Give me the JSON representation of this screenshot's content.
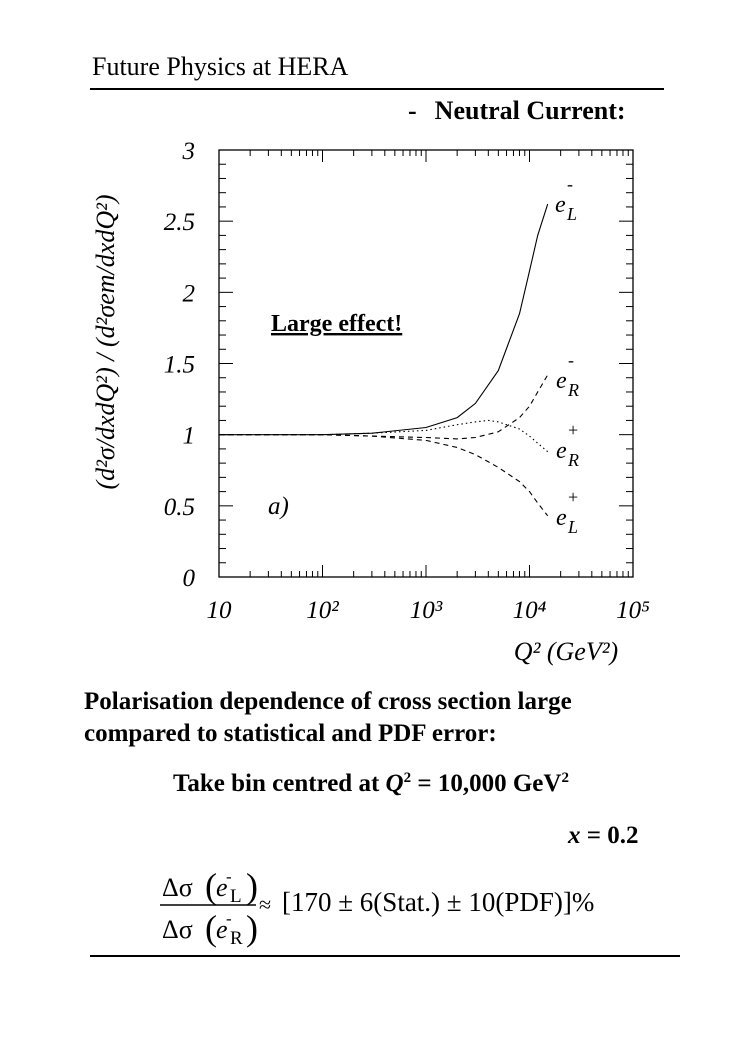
{
  "header": {
    "title": "Future Physics at HERA"
  },
  "section": {
    "bullet": "-",
    "heading": "Neutral Current:"
  },
  "chart_data": {
    "type": "line",
    "ylabel": "(d²σ/dxdQ²) / (d²σem/dxdQ²)",
    "xlabel": "Q² (GeV²)",
    "x_scale": "log",
    "xlim": [
      10,
      100000
    ],
    "ylim": [
      0,
      3
    ],
    "x_ticks": [
      "10",
      "10²",
      "10³",
      "10⁴",
      "10⁵"
    ],
    "y_ticks": [
      "0",
      "0.5",
      "1",
      "1.5",
      "2",
      "2.5",
      "3"
    ],
    "annotation": "Large effect!",
    "panel_label": "a)",
    "series": [
      {
        "name": "e⁻L",
        "style": "solid",
        "x": [
          10,
          100,
          300,
          1000,
          2000,
          3000,
          5000,
          8000,
          10000,
          12000,
          15000
        ],
        "y": [
          1.0,
          1.0,
          1.01,
          1.05,
          1.12,
          1.22,
          1.45,
          1.85,
          2.15,
          2.4,
          2.62
        ]
      },
      {
        "name": "e⁻R",
        "style": "dashed",
        "x": [
          10,
          100,
          300,
          1000,
          2000,
          3000,
          5000,
          8000,
          10000,
          12000,
          15000
        ],
        "y": [
          1.0,
          1.0,
          0.99,
          0.98,
          0.97,
          0.98,
          1.02,
          1.12,
          1.2,
          1.3,
          1.42
        ]
      },
      {
        "name": "e⁺R",
        "style": "dotted",
        "x": [
          10,
          100,
          300,
          1000,
          2000,
          3000,
          4000,
          5000,
          8000,
          10000,
          12000,
          15000
        ],
        "y": [
          1.0,
          1.0,
          1.01,
          1.03,
          1.07,
          1.09,
          1.1,
          1.09,
          1.04,
          0.99,
          0.94,
          0.88
        ]
      },
      {
        "name": "e⁺L",
        "style": "dashed",
        "x": [
          10,
          100,
          300,
          1000,
          2000,
          3000,
          5000,
          8000,
          10000,
          12000,
          15000
        ],
        "y": [
          1.0,
          1.0,
          0.99,
          0.96,
          0.91,
          0.86,
          0.77,
          0.67,
          0.6,
          0.52,
          0.43
        ]
      }
    ],
    "series_labels": [
      {
        "sign": "-",
        "base": "e",
        "sub": "L"
      },
      {
        "sign": "-",
        "base": "e",
        "sub": "R"
      },
      {
        "sign": "+",
        "base": "e",
        "sub": "R"
      },
      {
        "sign": "+",
        "base": "e",
        "sub": "L"
      }
    ]
  },
  "text": {
    "paragraph": "Polarisation dependence of cross section large compared to statistical and PDF error:",
    "bin_prefix": "Take bin centred at ",
    "bin_var": "Q",
    "bin_var_exp": "2",
    "bin_value": " = 10,000 GeV",
    "bin_unit_exp": "2",
    "x_var": "x",
    "x_value": " = 0.2"
  },
  "formula": {
    "delta_sigma": "Δσ",
    "base": "e",
    "minus": "-",
    "num_sub": "L",
    "den_sub": "R",
    "approx": "≈",
    "result": "[170 ± 6(Stat.) ± 10(PDF)]%"
  }
}
